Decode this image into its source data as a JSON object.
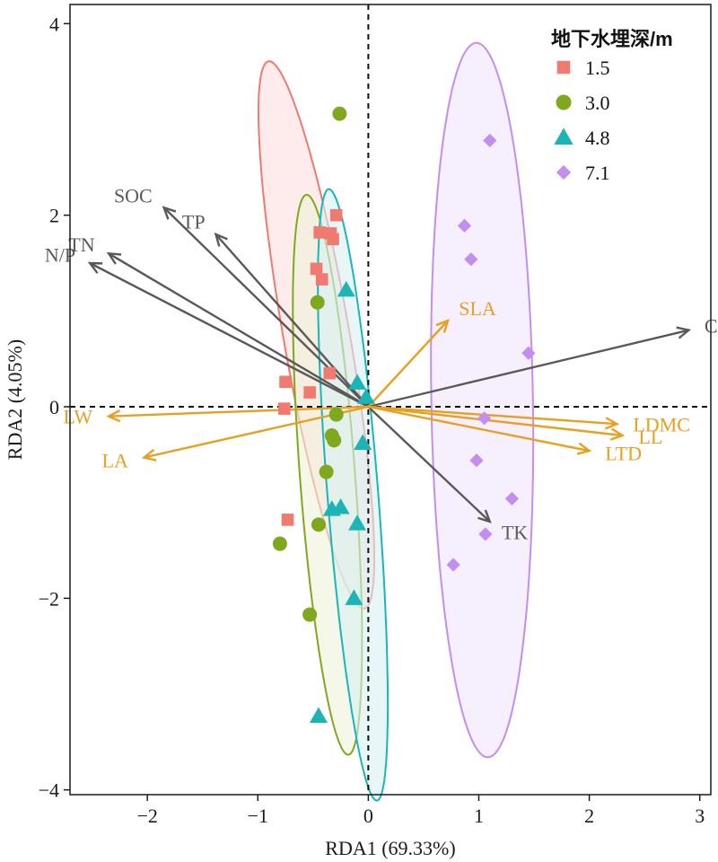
{
  "chart_data": {
    "type": "scatter",
    "subtype": "RDA biplot",
    "xlabel": "RDA1 (69.33%)",
    "ylabel": "RDA2 (4.05%)",
    "xlim": [
      -2.7,
      3.1
    ],
    "ylim": [
      -4.05,
      4.2
    ],
    "x_ticks": [
      -2,
      -1,
      0,
      1,
      2,
      3
    ],
    "y_ticks": [
      -4,
      -2,
      0,
      2,
      4
    ],
    "x_tick_labels": [
      "−2",
      "−1",
      "0",
      "1",
      "2",
      "3"
    ],
    "y_tick_labels": [
      "−4",
      "−2",
      "0",
      "2",
      "4"
    ],
    "zero_lines": "dashed",
    "grid": false,
    "legend": {
      "title": "地下水埋深/m",
      "position": "top-right"
    },
    "series": [
      {
        "name": "1.5",
        "marker": "square",
        "color": "#F07970",
        "fill": "#FCE0DD",
        "ellipse": {
          "cx": -0.47,
          "cy": 0.75,
          "rx": 2.89,
          "ry": 0.3,
          "angle_deg": -81.4
        },
        "points": [
          [
            -0.29,
            2.0
          ],
          [
            -0.44,
            1.82
          ],
          [
            -0.34,
            1.81
          ],
          [
            -0.32,
            1.75
          ],
          [
            -0.42,
            1.33
          ],
          [
            -0.47,
            1.44
          ],
          [
            -0.35,
            0.35
          ],
          [
            -0.75,
            0.26
          ],
          [
            -0.53,
            0.15
          ],
          [
            -0.76,
            -0.02
          ],
          [
            -0.73,
            -1.18
          ]
        ]
      },
      {
        "name": "3.0",
        "marker": "circle",
        "color": "#7FA81E",
        "fill": "#EEF1D8",
        "ellipse": {
          "cx": -0.37,
          "cy": -0.71,
          "rx": 2.93,
          "ry": 0.25,
          "angle_deg": -86.3
        },
        "points": [
          [
            -0.26,
            3.06
          ],
          [
            -0.46,
            1.09
          ],
          [
            -0.29,
            -0.08
          ],
          [
            -0.33,
            -0.3
          ],
          [
            -0.31,
            -0.35
          ],
          [
            -0.38,
            -0.68
          ],
          [
            -0.45,
            -1.23
          ],
          [
            -0.8,
            -1.43
          ],
          [
            -0.53,
            -2.17
          ]
        ]
      },
      {
        "name": "4.8",
        "marker": "triangle",
        "color": "#1BB5B8",
        "fill": "#D8F0F2",
        "ellipse": {
          "cx": -0.14,
          "cy": -0.92,
          "rx": 3.2,
          "ry": 0.23,
          "angle_deg": -86.1
        },
        "points": [
          [
            -0.2,
            1.22
          ],
          [
            -0.1,
            0.25
          ],
          [
            -0.02,
            0.1
          ],
          [
            -0.05,
            -0.38
          ],
          [
            -0.33,
            -1.07
          ],
          [
            -0.25,
            -1.05
          ],
          [
            -0.1,
            -1.22
          ],
          [
            -0.13,
            -2.0
          ],
          [
            -0.45,
            -3.23
          ]
        ]
      },
      {
        "name": "7.1",
        "marker": "diamond",
        "color": "#C28EF0",
        "fill": "#F0E4FC",
        "ellipse": {
          "cx": 1.03,
          "cy": 0.07,
          "rx": 3.73,
          "ry": 0.46,
          "angle_deg": -89.2
        },
        "points": [
          [
            1.1,
            2.78
          ],
          [
            0.87,
            1.89
          ],
          [
            0.93,
            1.54
          ],
          [
            1.45,
            0.56
          ],
          [
            1.05,
            -0.12
          ],
          [
            0.98,
            -0.56
          ],
          [
            1.3,
            -0.96
          ],
          [
            1.06,
            -1.33
          ],
          [
            0.77,
            -1.65
          ]
        ]
      }
    ],
    "vectors": {
      "explanatory": {
        "color": "#595959",
        "items": [
          {
            "label": "SOC",
            "x": -1.85,
            "y": 2.08
          },
          {
            "label": "TP",
            "x": -1.38,
            "y": 1.8
          },
          {
            "label": "TN",
            "x": -2.35,
            "y": 1.6
          },
          {
            "label": "N/P",
            "x": -2.52,
            "y": 1.5
          },
          {
            "label": "C/N",
            "x": 2.9,
            "y": 0.8
          },
          {
            "label": "TK",
            "x": 1.1,
            "y": -1.2
          }
        ]
      },
      "response": {
        "color": "#E8A020",
        "items": [
          {
            "label": "SLA",
            "x": 0.72,
            "y": 0.9
          },
          {
            "label": "LW",
            "x": -2.35,
            "y": -0.1
          },
          {
            "label": "LA",
            "x": -2.03,
            "y": -0.53
          },
          {
            "label": "LDMC",
            "x": 2.25,
            "y": -0.18
          },
          {
            "label": "LL",
            "x": 2.3,
            "y": -0.3
          },
          {
            "label": "LTD",
            "x": 2.0,
            "y": -0.46
          }
        ]
      }
    }
  }
}
